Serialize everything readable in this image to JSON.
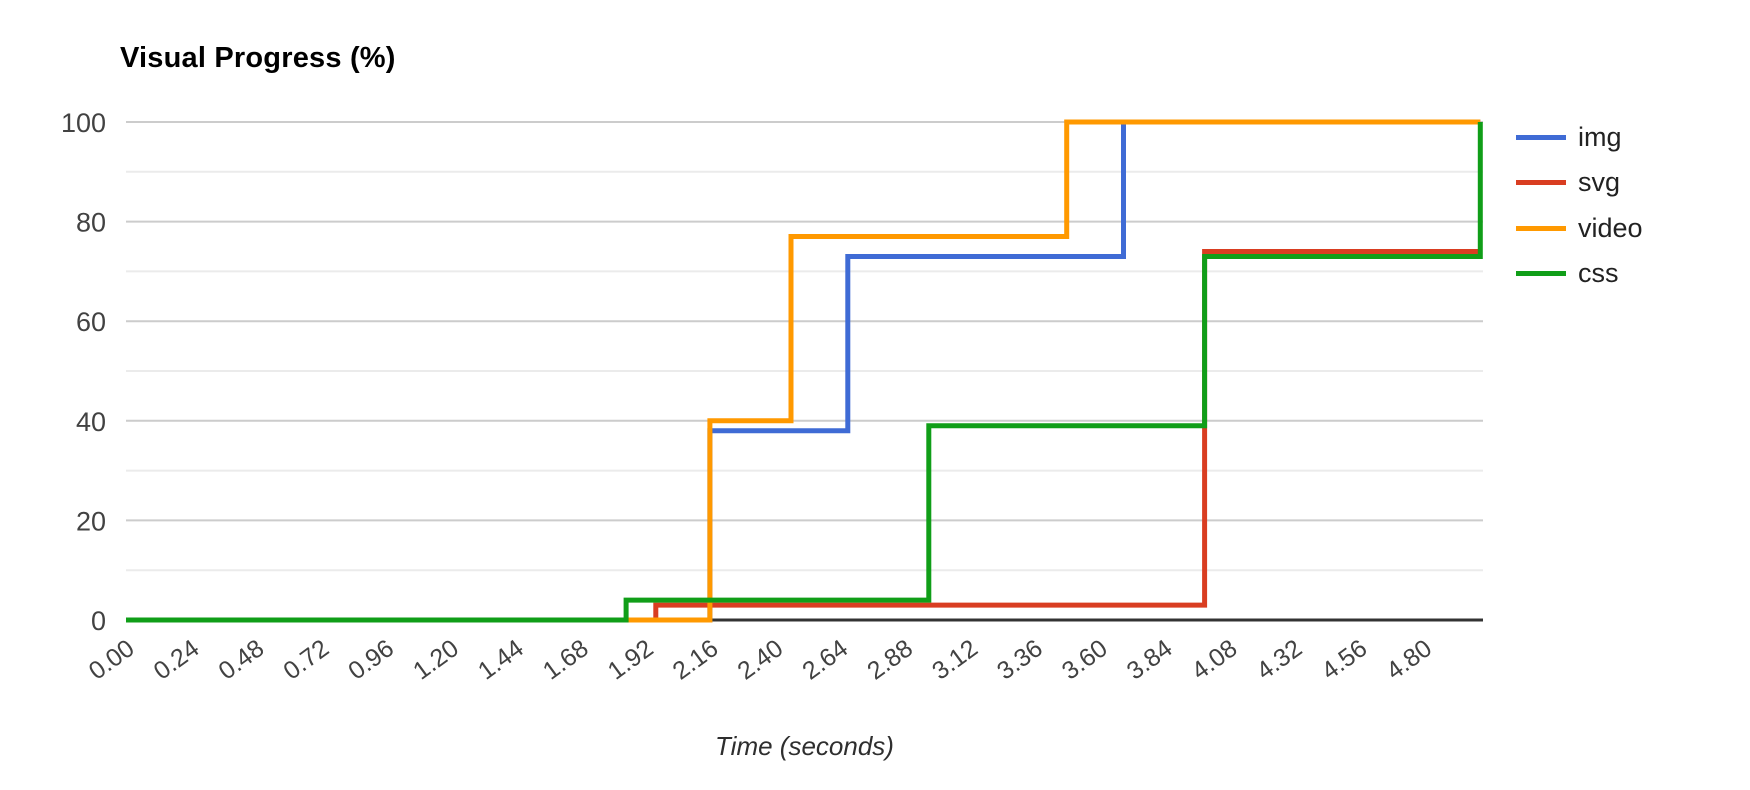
{
  "chart_data": {
    "type": "line",
    "variant": "step-after",
    "title": "Visual Progress (%)",
    "xlabel": "Time (seconds)",
    "ylabel": "Visual Progress (%)",
    "x_ticks": [
      "0.00",
      "0.24",
      "0.48",
      "0.72",
      "0.96",
      "1.20",
      "1.44",
      "1.68",
      "1.92",
      "2.16",
      "2.40",
      "2.64",
      "2.88",
      "3.12",
      "3.36",
      "3.60",
      "3.84",
      "4.08",
      "4.32",
      "4.56",
      "4.80"
    ],
    "y_ticks": [
      0,
      20,
      40,
      60,
      80,
      100
    ],
    "y_minor_ticks": [
      10,
      30,
      50,
      70,
      90
    ],
    "xlim": [
      0,
      5.02
    ],
    "ylim": [
      0,
      100
    ],
    "grid": "horizontal",
    "legend_position": "right",
    "colors": {
      "grid_major": "#cccccc",
      "grid_minor": "#ebebeb",
      "axis_baseline": "#333333",
      "tick_text": "#424242"
    },
    "series": [
      {
        "name": "img",
        "color": "#3f6bd5",
        "points": [
          [
            0,
            0
          ],
          [
            2.16,
            0
          ],
          [
            2.16,
            38
          ],
          [
            2.67,
            38
          ],
          [
            2.67,
            73
          ],
          [
            3.69,
            73
          ],
          [
            3.69,
            100
          ],
          [
            5.01,
            100
          ]
        ]
      },
      {
        "name": "svg",
        "color": "#d93d21",
        "points": [
          [
            0,
            0
          ],
          [
            1.96,
            0
          ],
          [
            1.96,
            3
          ],
          [
            3.99,
            3
          ],
          [
            3.99,
            74
          ],
          [
            5.01,
            74
          ]
        ]
      },
      {
        "name": "video",
        "color": "#ff9900",
        "points": [
          [
            0,
            0
          ],
          [
            2.16,
            0
          ],
          [
            2.16,
            40
          ],
          [
            2.46,
            40
          ],
          [
            2.46,
            77
          ],
          [
            3.48,
            77
          ],
          [
            3.48,
            100
          ],
          [
            5.01,
            100
          ]
        ]
      },
      {
        "name": "css",
        "color": "#109e18",
        "points": [
          [
            0,
            0
          ],
          [
            1.85,
            0
          ],
          [
            1.85,
            4
          ],
          [
            2.97,
            4
          ],
          [
            2.97,
            39
          ],
          [
            3.99,
            39
          ],
          [
            3.99,
            73
          ],
          [
            5.01,
            73
          ],
          [
            5.01,
            100
          ]
        ]
      }
    ]
  }
}
